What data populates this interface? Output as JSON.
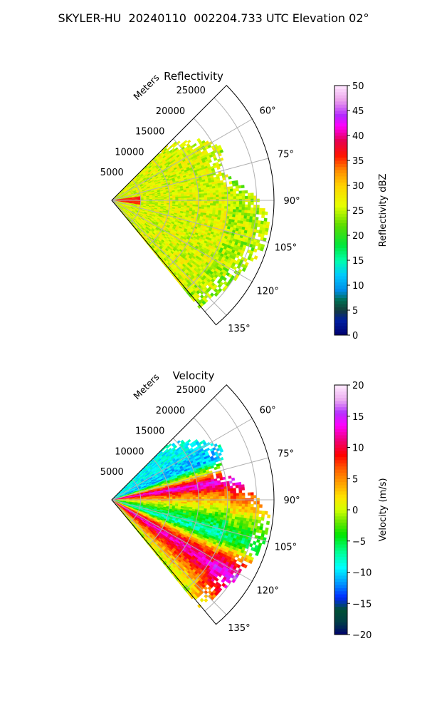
{
  "page_title": "SKYLER-HU  20240110  002204.733 UTC Elevation 02°",
  "chart_data": [
    {
      "type": "heatmap",
      "subtype": "polar-sector",
      "title": "Reflectivity",
      "radial_label": "Meters",
      "radial_ticks": [
        5000,
        10000,
        15000,
        20000,
        25000
      ],
      "radial_tick_labels": [
        "5000",
        "10000",
        "15000",
        "20000",
        "25000"
      ],
      "radial_lim": [
        0,
        28000
      ],
      "angle_lim_deg": [
        45,
        140
      ],
      "angle_ticks_deg": [
        60,
        75,
        90,
        105,
        120,
        135
      ],
      "angle_tick_labels": [
        "60°",
        "75°",
        "90°",
        "105°",
        "120°",
        "135°"
      ],
      "grid": true,
      "colorbar": {
        "label": "Reflectivity dBZ",
        "min": 0,
        "max": 50,
        "ticks": [
          0,
          5,
          10,
          15,
          20,
          25,
          30,
          35,
          40,
          45,
          50
        ],
        "tick_labels": [
          "0",
          "5",
          "10",
          "15",
          "20",
          "25",
          "30",
          "35",
          "40",
          "45",
          "50"
        ],
        "colormap": "NWSRef"
      },
      "field_description": "values mostly 22-32 dBZ, 35-40 dBZ near origin at 90°",
      "data_extent": [
        [
          45,
          13000
        ],
        [
          55,
          18000
        ],
        [
          65,
          21000
        ],
        [
          75,
          19000
        ],
        [
          85,
          23000
        ],
        [
          95,
          27000
        ],
        [
          105,
          27500
        ],
        [
          115,
          26000
        ],
        [
          125,
          25000
        ],
        [
          135,
          24000
        ],
        [
          140,
          24000
        ]
      ]
    },
    {
      "type": "heatmap",
      "subtype": "polar-sector",
      "title": "Velocity",
      "radial_label": "Meters",
      "radial_ticks": [
        5000,
        10000,
        15000,
        20000,
        25000
      ],
      "radial_tick_labels": [
        "5000",
        "10000",
        "15000",
        "20000",
        "25000"
      ],
      "radial_lim": [
        0,
        28000
      ],
      "angle_lim_deg": [
        45,
        140
      ],
      "angle_ticks_deg": [
        60,
        75,
        90,
        105,
        120,
        135
      ],
      "angle_tick_labels": [
        "60°",
        "75°",
        "90°",
        "105°",
        "120°",
        "135°"
      ],
      "grid": true,
      "colorbar": {
        "label": "Velocity (m/s)",
        "min": -20,
        "max": 20,
        "ticks": [
          -20,
          -15,
          -10,
          -5,
          0,
          5,
          10,
          15,
          20
        ],
        "tick_labels": [
          "−20",
          "−15",
          "−10",
          "−5",
          "0",
          "5",
          "10",
          "15",
          "20"
        ],
        "colormap": "NWSVel"
      },
      "field_description": "velocity bands: about -12 m/s near 60-80°, +15 m/s near 80°, about 0 m/s near 90°, -5 to -10 m/s near 105°, +10 to +15 m/s near 120°, 0 m/s near 135°"
    }
  ]
}
